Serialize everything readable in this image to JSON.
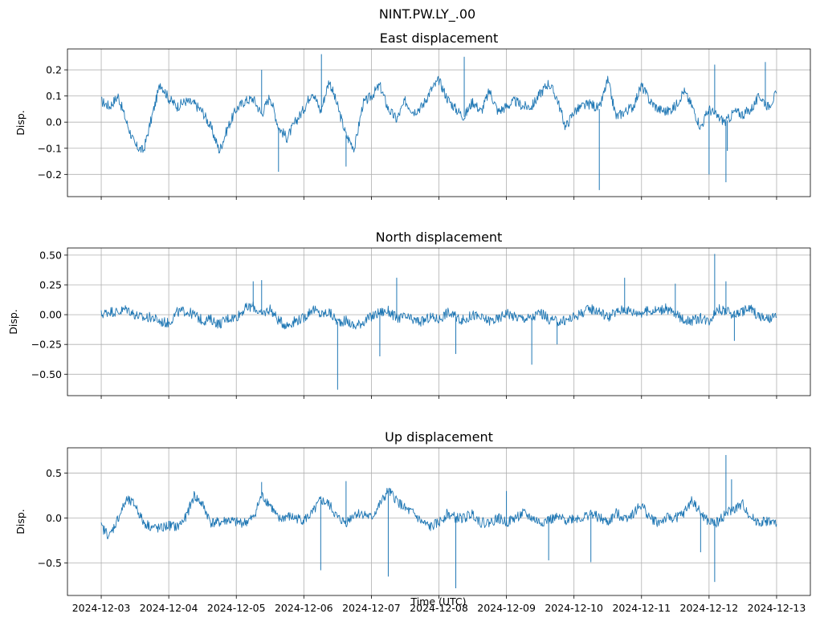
{
  "figure": {
    "suptitle": "NINT.PW.LY_.00",
    "xlabel": "Time (UTC)"
  },
  "colors": {
    "line": "#1f77b4",
    "grid": "#b0b0b0",
    "axes": "#000000",
    "background": "#ffffff"
  },
  "chart_data": [
    {
      "type": "line",
      "title": "East displacement",
      "ylabel": "Disp.",
      "xlim": [
        "2024-12-02T12:00",
        "2024-12-13T12:00"
      ],
      "ylim": [
        -0.285,
        0.28
      ],
      "yticks": [
        -0.2,
        -0.1,
        0.0,
        0.1,
        0.2
      ],
      "ytick_labels": [
        "−0.2",
        "−0.1",
        "0.0",
        "0.1",
        "0.2"
      ],
      "show_xtick_labels": false,
      "grid": true,
      "series": [
        {
          "x": [
            "2024-12-03T00:00",
            "2024-12-03T03:00",
            "2024-12-03T06:00",
            "2024-12-03T09:00",
            "2024-12-03T12:00",
            "2024-12-03T15:00",
            "2024-12-03T18:00",
            "2024-12-03T21:00",
            "2024-12-04T00:00",
            "2024-12-04T03:00",
            "2024-12-04T06:00",
            "2024-12-04T09:00",
            "2024-12-04T12:00",
            "2024-12-04T15:00",
            "2024-12-04T18:00",
            "2024-12-04T21:00",
            "2024-12-05T00:00",
            "2024-12-05T03:00",
            "2024-12-05T06:00",
            "2024-12-05T09:00",
            "2024-12-05T12:00",
            "2024-12-05T15:00",
            "2024-12-05T18:00",
            "2024-12-05T21:00",
            "2024-12-06T00:00",
            "2024-12-06T03:00",
            "2024-12-06T06:00",
            "2024-12-06T09:00",
            "2024-12-06T12:00",
            "2024-12-06T15:00",
            "2024-12-06T18:00",
            "2024-12-06T21:00",
            "2024-12-07T00:00",
            "2024-12-07T03:00",
            "2024-12-07T06:00",
            "2024-12-07T09:00",
            "2024-12-07T12:00",
            "2024-12-07T15:00",
            "2024-12-07T18:00",
            "2024-12-07T21:00",
            "2024-12-08T00:00",
            "2024-12-08T03:00",
            "2024-12-08T06:00",
            "2024-12-08T09:00",
            "2024-12-08T12:00",
            "2024-12-08T15:00",
            "2024-12-08T18:00",
            "2024-12-08T21:00",
            "2024-12-09T00:00",
            "2024-12-09T03:00",
            "2024-12-09T06:00",
            "2024-12-09T09:00",
            "2024-12-09T12:00",
            "2024-12-09T15:00",
            "2024-12-09T18:00",
            "2024-12-09T21:00",
            "2024-12-10T00:00",
            "2024-12-10T03:00",
            "2024-12-10T06:00",
            "2024-12-10T09:00",
            "2024-12-10T12:00",
            "2024-12-10T15:00",
            "2024-12-10T18:00",
            "2024-12-10T21:00",
            "2024-12-11T00:00",
            "2024-12-11T03:00",
            "2024-12-11T06:00",
            "2024-12-11T09:00",
            "2024-12-11T12:00",
            "2024-12-11T15:00",
            "2024-12-11T18:00",
            "2024-12-11T21:00",
            "2024-12-12T00:00",
            "2024-12-12T03:00",
            "2024-12-12T06:00",
            "2024-12-12T09:00",
            "2024-12-12T12:00",
            "2024-12-12T15:00",
            "2024-12-12T18:00",
            "2024-12-12T21:00",
            "2024-12-13T00:00"
          ],
          "y": [
            0.08,
            0.06,
            0.1,
            0.0,
            -0.09,
            -0.11,
            0.02,
            0.15,
            0.09,
            0.06,
            0.08,
            0.07,
            0.04,
            -0.02,
            -0.11,
            -0.02,
            0.05,
            0.08,
            0.09,
            0.03,
            0.1,
            -0.02,
            -0.06,
            0.0,
            0.05,
            0.12,
            0.04,
            0.16,
            0.06,
            -0.05,
            -0.1,
            0.07,
            0.1,
            0.14,
            0.05,
            0.01,
            0.08,
            0.04,
            0.06,
            0.12,
            0.16,
            0.09,
            0.05,
            0.02,
            0.08,
            0.04,
            0.12,
            0.04,
            0.06,
            0.08,
            0.06,
            0.06,
            0.11,
            0.15,
            0.09,
            -0.02,
            0.04,
            0.06,
            0.07,
            0.05,
            0.16,
            0.02,
            0.04,
            0.06,
            0.14,
            0.08,
            0.05,
            0.04,
            0.06,
            0.12,
            0.06,
            -0.02,
            0.05,
            0.02,
            0.0,
            0.04,
            0.03,
            0.05,
            0.1,
            0.06,
            0.11
          ]
        }
      ],
      "spikes": [
        {
          "x": "2024-12-05T09:00",
          "y": 0.2
        },
        {
          "x": "2024-12-05T15:00",
          "y": -0.19
        },
        {
          "x": "2024-12-06T06:15",
          "y": 0.26
        },
        {
          "x": "2024-12-06T15:00",
          "y": -0.17
        },
        {
          "x": "2024-12-08T09:00",
          "y": 0.25
        },
        {
          "x": "2024-12-10T09:00",
          "y": -0.26
        },
        {
          "x": "2024-12-12T00:00",
          "y": -0.2
        },
        {
          "x": "2024-12-12T02:00",
          "y": 0.22
        },
        {
          "x": "2024-12-12T06:00",
          "y": -0.23
        },
        {
          "x": "2024-12-12T06:30",
          "y": -0.11
        },
        {
          "x": "2024-12-12T20:00",
          "y": 0.23
        }
      ]
    },
    {
      "type": "line",
      "title": "North displacement",
      "ylabel": "Disp.",
      "xlim": [
        "2024-12-02T12:00",
        "2024-12-13T12:00"
      ],
      "ylim": [
        -0.68,
        0.56
      ],
      "yticks": [
        -0.5,
        -0.25,
        0.0,
        0.25,
        0.5
      ],
      "ytick_labels": [
        "−0.50",
        "−0.25",
        "0.00",
        "0.25",
        "0.50"
      ],
      "show_xtick_labels": false,
      "grid": true,
      "series": [
        {
          "x": [
            "2024-12-03T00:00",
            "2024-12-03T03:00",
            "2024-12-03T06:00",
            "2024-12-03T09:00",
            "2024-12-03T12:00",
            "2024-12-03T15:00",
            "2024-12-03T18:00",
            "2024-12-03T21:00",
            "2024-12-04T00:00",
            "2024-12-04T03:00",
            "2024-12-04T06:00",
            "2024-12-04T09:00",
            "2024-12-04T12:00",
            "2024-12-04T15:00",
            "2024-12-04T18:00",
            "2024-12-04T21:00",
            "2024-12-05T00:00",
            "2024-12-05T03:00",
            "2024-12-05T06:00",
            "2024-12-05T09:00",
            "2024-12-05T12:00",
            "2024-12-05T15:00",
            "2024-12-05T18:00",
            "2024-12-05T21:00",
            "2024-12-06T00:00",
            "2024-12-06T03:00",
            "2024-12-06T06:00",
            "2024-12-06T09:00",
            "2024-12-06T12:00",
            "2024-12-06T15:00",
            "2024-12-06T18:00",
            "2024-12-06T21:00",
            "2024-12-07T00:00",
            "2024-12-07T03:00",
            "2024-12-07T06:00",
            "2024-12-07T09:00",
            "2024-12-07T12:00",
            "2024-12-07T15:00",
            "2024-12-07T18:00",
            "2024-12-07T21:00",
            "2024-12-08T00:00",
            "2024-12-08T03:00",
            "2024-12-08T06:00",
            "2024-12-08T09:00",
            "2024-12-08T12:00",
            "2024-12-08T15:00",
            "2024-12-08T18:00",
            "2024-12-08T21:00",
            "2024-12-09T00:00",
            "2024-12-09T03:00",
            "2024-12-09T06:00",
            "2024-12-09T09:00",
            "2024-12-09T12:00",
            "2024-12-09T15:00",
            "2024-12-09T18:00",
            "2024-12-09T21:00",
            "2024-12-10T00:00",
            "2024-12-10T03:00",
            "2024-12-10T06:00",
            "2024-12-10T09:00",
            "2024-12-10T12:00",
            "2024-12-10T15:00",
            "2024-12-10T18:00",
            "2024-12-10T21:00",
            "2024-12-11T00:00",
            "2024-12-11T03:00",
            "2024-12-11T06:00",
            "2024-12-11T09:00",
            "2024-12-11T12:00",
            "2024-12-11T15:00",
            "2024-12-11T18:00",
            "2024-12-11T21:00",
            "2024-12-12T00:00",
            "2024-12-12T03:00",
            "2024-12-12T06:00",
            "2024-12-12T09:00",
            "2024-12-12T12:00",
            "2024-12-12T15:00",
            "2024-12-12T18:00",
            "2024-12-12T21:00",
            "2024-12-13T00:00"
          ],
          "y": [
            0.0,
            0.03,
            0.02,
            0.05,
            0.0,
            -0.03,
            -0.02,
            -0.06,
            -0.07,
            0.02,
            0.03,
            0.0,
            -0.05,
            -0.04,
            -0.08,
            -0.03,
            -0.02,
            0.05,
            0.07,
            0.0,
            0.05,
            -0.05,
            -0.09,
            -0.05,
            -0.03,
            0.05,
            0.0,
            0.02,
            -0.06,
            -0.05,
            -0.1,
            -0.06,
            -0.02,
            0.02,
            0.03,
            -0.03,
            -0.02,
            -0.05,
            -0.06,
            -0.02,
            -0.04,
            0.02,
            -0.02,
            -0.05,
            0.0,
            -0.03,
            -0.05,
            -0.04,
            0.02,
            -0.02,
            -0.03,
            -0.03,
            0.02,
            -0.04,
            -0.06,
            -0.05,
            -0.02,
            0.02,
            0.05,
            0.03,
            -0.02,
            0.02,
            0.05,
            0.02,
            0.02,
            0.03,
            0.04,
            0.05,
            0.0,
            -0.04,
            -0.05,
            -0.03,
            -0.05,
            0.05,
            0.03,
            0.0,
            0.03,
            0.05,
            -0.02,
            -0.04,
            -0.02
          ]
        }
      ],
      "spikes": [
        {
          "x": "2024-12-05T06:00",
          "y": 0.28
        },
        {
          "x": "2024-12-05T09:00",
          "y": 0.29
        },
        {
          "x": "2024-12-06T12:00",
          "y": -0.63
        },
        {
          "x": "2024-12-07T03:00",
          "y": -0.35
        },
        {
          "x": "2024-12-07T09:00",
          "y": 0.31
        },
        {
          "x": "2024-12-08T06:00",
          "y": -0.33
        },
        {
          "x": "2024-12-09T09:00",
          "y": -0.42
        },
        {
          "x": "2024-12-09T18:00",
          "y": -0.25
        },
        {
          "x": "2024-12-10T18:00",
          "y": 0.31
        },
        {
          "x": "2024-12-11T12:00",
          "y": 0.26
        },
        {
          "x": "2024-12-12T02:00",
          "y": 0.51
        },
        {
          "x": "2024-12-12T06:00",
          "y": 0.28
        },
        {
          "x": "2024-12-12T09:00",
          "y": -0.22
        }
      ]
    },
    {
      "type": "line",
      "title": "Up displacement",
      "ylabel": "Disp.",
      "xlim": [
        "2024-12-02T12:00",
        "2024-12-13T12:00"
      ],
      "ylim": [
        -0.86,
        0.78
      ],
      "yticks": [
        -0.5,
        0.0,
        0.5
      ],
      "ytick_labels": [
        "−0.5",
        "0.0",
        "0.5"
      ],
      "show_xtick_labels": true,
      "xticks": [
        "2024-12-03",
        "2024-12-04",
        "2024-12-05",
        "2024-12-06",
        "2024-12-07",
        "2024-12-08",
        "2024-12-09",
        "2024-12-10",
        "2024-12-11",
        "2024-12-12",
        "2024-12-13"
      ],
      "xtick_labels": [
        "2024-12-03",
        "2024-12-04",
        "2024-12-05",
        "2024-12-06",
        "2024-12-07",
        "2024-12-08",
        "2024-12-09",
        "2024-12-10",
        "2024-12-11",
        "2024-12-12",
        "2024-12-13"
      ],
      "grid": true,
      "series": [
        {
          "x": [
            "2024-12-03T00:00",
            "2024-12-03T03:00",
            "2024-12-03T06:00",
            "2024-12-03T09:00",
            "2024-12-03T12:00",
            "2024-12-03T15:00",
            "2024-12-03T18:00",
            "2024-12-03T21:00",
            "2024-12-04T00:00",
            "2024-12-04T03:00",
            "2024-12-04T06:00",
            "2024-12-04T09:00",
            "2024-12-04T12:00",
            "2024-12-04T15:00",
            "2024-12-04T18:00",
            "2024-12-04T21:00",
            "2024-12-05T00:00",
            "2024-12-05T03:00",
            "2024-12-05T06:00",
            "2024-12-05T09:00",
            "2024-12-05T12:00",
            "2024-12-05T15:00",
            "2024-12-05T18:00",
            "2024-12-05T21:00",
            "2024-12-06T00:00",
            "2024-12-06T03:00",
            "2024-12-06T06:00",
            "2024-12-06T09:00",
            "2024-12-06T12:00",
            "2024-12-06T15:00",
            "2024-12-06T18:00",
            "2024-12-06T21:00",
            "2024-12-07T00:00",
            "2024-12-07T03:00",
            "2024-12-07T06:00",
            "2024-12-07T09:00",
            "2024-12-07T12:00",
            "2024-12-07T15:00",
            "2024-12-07T18:00",
            "2024-12-07T21:00",
            "2024-12-08T00:00",
            "2024-12-08T03:00",
            "2024-12-08T06:00",
            "2024-12-08T09:00",
            "2024-12-08T12:00",
            "2024-12-08T15:00",
            "2024-12-08T18:00",
            "2024-12-08T21:00",
            "2024-12-09T00:00",
            "2024-12-09T03:00",
            "2024-12-09T06:00",
            "2024-12-09T09:00",
            "2024-12-09T12:00",
            "2024-12-09T15:00",
            "2024-12-09T18:00",
            "2024-12-09T21:00",
            "2024-12-10T00:00",
            "2024-12-10T03:00",
            "2024-12-10T06:00",
            "2024-12-10T09:00",
            "2024-12-10T12:00",
            "2024-12-10T15:00",
            "2024-12-10T18:00",
            "2024-12-10T21:00",
            "2024-12-11T00:00",
            "2024-12-11T03:00",
            "2024-12-11T06:00",
            "2024-12-11T09:00",
            "2024-12-11T12:00",
            "2024-12-11T15:00",
            "2024-12-11T18:00",
            "2024-12-11T21:00",
            "2024-12-12T00:00",
            "2024-12-12T03:00",
            "2024-12-12T06:00",
            "2024-12-12T09:00",
            "2024-12-12T12:00",
            "2024-12-12T15:00",
            "2024-12-12T18:00",
            "2024-12-12T21:00",
            "2024-12-13T00:00"
          ],
          "y": [
            -0.1,
            -0.2,
            0.0,
            0.2,
            0.15,
            -0.05,
            -0.1,
            -0.12,
            -0.08,
            -0.1,
            0.0,
            0.25,
            0.15,
            -0.05,
            -0.05,
            -0.02,
            -0.05,
            -0.05,
            0.0,
            0.25,
            0.15,
            -0.02,
            0.02,
            0.0,
            -0.02,
            0.05,
            0.2,
            0.15,
            0.0,
            -0.05,
            0.05,
            0.05,
            0.0,
            0.15,
            0.3,
            0.2,
            0.1,
            0.05,
            -0.05,
            -0.1,
            -0.05,
            0.05,
            0.0,
            0.0,
            0.05,
            -0.05,
            -0.05,
            0.0,
            -0.05,
            0.0,
            0.05,
            0.0,
            -0.05,
            -0.02,
            0.0,
            -0.02,
            0.0,
            0.0,
            0.05,
            0.0,
            -0.05,
            0.05,
            0.0,
            0.05,
            0.15,
            0.0,
            -0.05,
            0.0,
            0.0,
            0.05,
            0.2,
            0.05,
            -0.05,
            -0.05,
            0.05,
            0.1,
            0.15,
            0.0,
            -0.05,
            -0.03,
            -0.07
          ]
        }
      ],
      "spikes": [
        {
          "x": "2024-12-05T09:00",
          "y": 0.4
        },
        {
          "x": "2024-12-06T06:00",
          "y": -0.58
        },
        {
          "x": "2024-12-06T15:00",
          "y": 0.41
        },
        {
          "x": "2024-12-07T06:00",
          "y": -0.65
        },
        {
          "x": "2024-12-08T06:00",
          "y": -0.78
        },
        {
          "x": "2024-12-09T00:00",
          "y": 0.3
        },
        {
          "x": "2024-12-09T15:00",
          "y": -0.47
        },
        {
          "x": "2024-12-10T06:00",
          "y": -0.49
        },
        {
          "x": "2024-12-11T21:00",
          "y": -0.38
        },
        {
          "x": "2024-12-12T02:00",
          "y": -0.71
        },
        {
          "x": "2024-12-12T06:00",
          "y": 0.7
        },
        {
          "x": "2024-12-12T08:00",
          "y": 0.43
        }
      ]
    }
  ]
}
